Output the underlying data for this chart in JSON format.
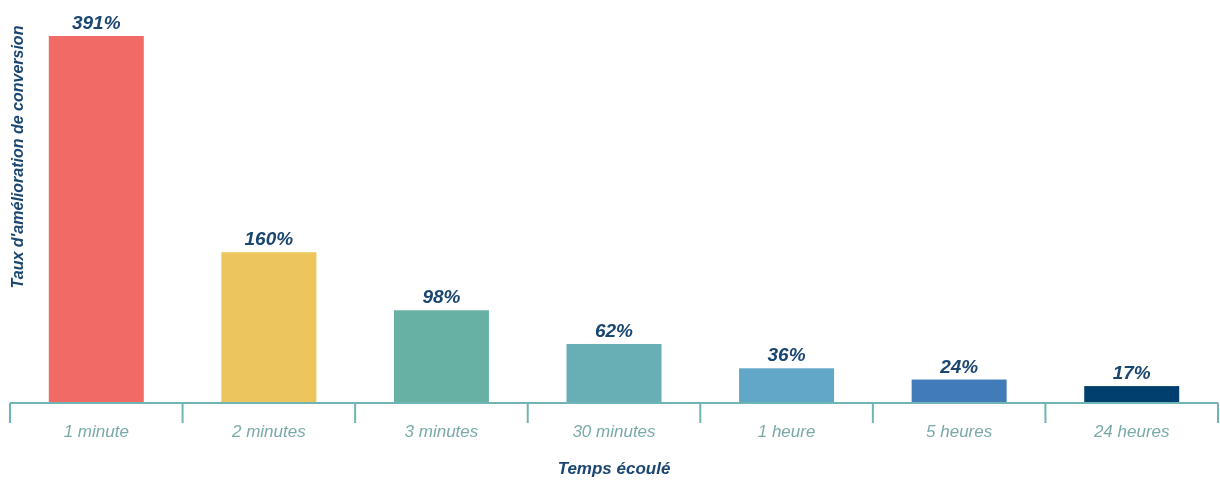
{
  "chart_data": {
    "type": "bar",
    "xlabel": "Temps écoulé",
    "ylabel": "Taux d'amélioration de conversion",
    "categories": [
      "1 minute",
      "2 minutes",
      "3 minutes",
      "30 minutes",
      "1 heure",
      "5 heures",
      "24 heures"
    ],
    "values": [
      391,
      160,
      98,
      62,
      36,
      24,
      17
    ],
    "colors": [
      "#f06b66",
      "#ecc55c",
      "#66b1a3",
      "#67aeb5",
      "#62a7c8",
      "#417cb9",
      "#003f6e"
    ],
    "value_labels": [
      "391%",
      "160%",
      "98%",
      "62%",
      "36%",
      "24%",
      "17%"
    ]
  }
}
